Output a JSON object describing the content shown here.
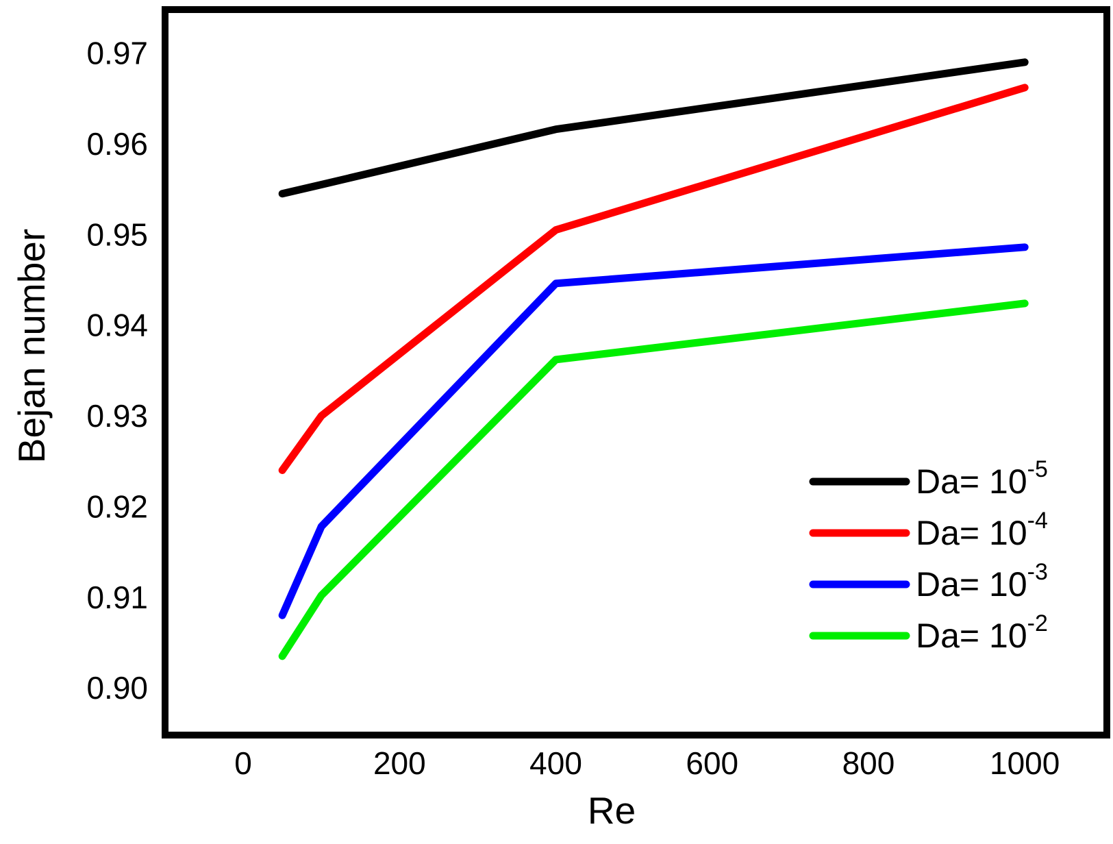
{
  "figure": {
    "background_color": "#ffffff",
    "frame_color": "#000000"
  },
  "chart_data": {
    "type": "line",
    "title": "",
    "xlabel": "Re",
    "ylabel": "Bejan number",
    "grid": false,
    "legend_position": "lower right",
    "xlim": [
      -100,
      1105
    ],
    "ylim": [
      0.8948,
      0.9748
    ],
    "x_ticks": [
      0,
      200,
      400,
      600,
      800,
      1000
    ],
    "x_tick_labels": [
      "0",
      "200",
      "400",
      "600",
      "800",
      "1000"
    ],
    "y_ticks": [
      0.9,
      0.91,
      0.92,
      0.93,
      0.94,
      0.95,
      0.96,
      0.97
    ],
    "y_tick_labels": [
      "0.90",
      "0.91",
      "0.92",
      "0.93",
      "0.94",
      "0.95",
      "0.96",
      "0.97"
    ],
    "x": [
      50,
      100,
      400,
      1000
    ],
    "series": [
      {
        "id": "da-1e-5",
        "name": "Da= 10⁻⁵",
        "label_base": "Da= 10",
        "label_exp": "-5",
        "color": "#000000",
        "values": [
          0.9545,
          0.9555,
          0.9616,
          0.969
        ]
      },
      {
        "id": "da-1e-4",
        "name": "Da= 10⁻⁴",
        "label_base": "Da= 10",
        "label_exp": "-4",
        "color": "#ff0000",
        "values": [
          0.924,
          0.93,
          0.9505,
          0.9662
        ]
      },
      {
        "id": "da-1e-3",
        "name": "Da= 10⁻³",
        "label_base": "Da= 10",
        "label_exp": "-3",
        "color": "#0000ff",
        "values": [
          0.908,
          0.9178,
          0.9446,
          0.9486
        ]
      },
      {
        "id": "da-1e-2",
        "name": "Da= 10⁻²",
        "label_base": "Da= 10",
        "label_exp": "-2",
        "color": "#00ee00",
        "values": [
          0.9035,
          0.9102,
          0.9362,
          0.9424
        ]
      }
    ]
  }
}
